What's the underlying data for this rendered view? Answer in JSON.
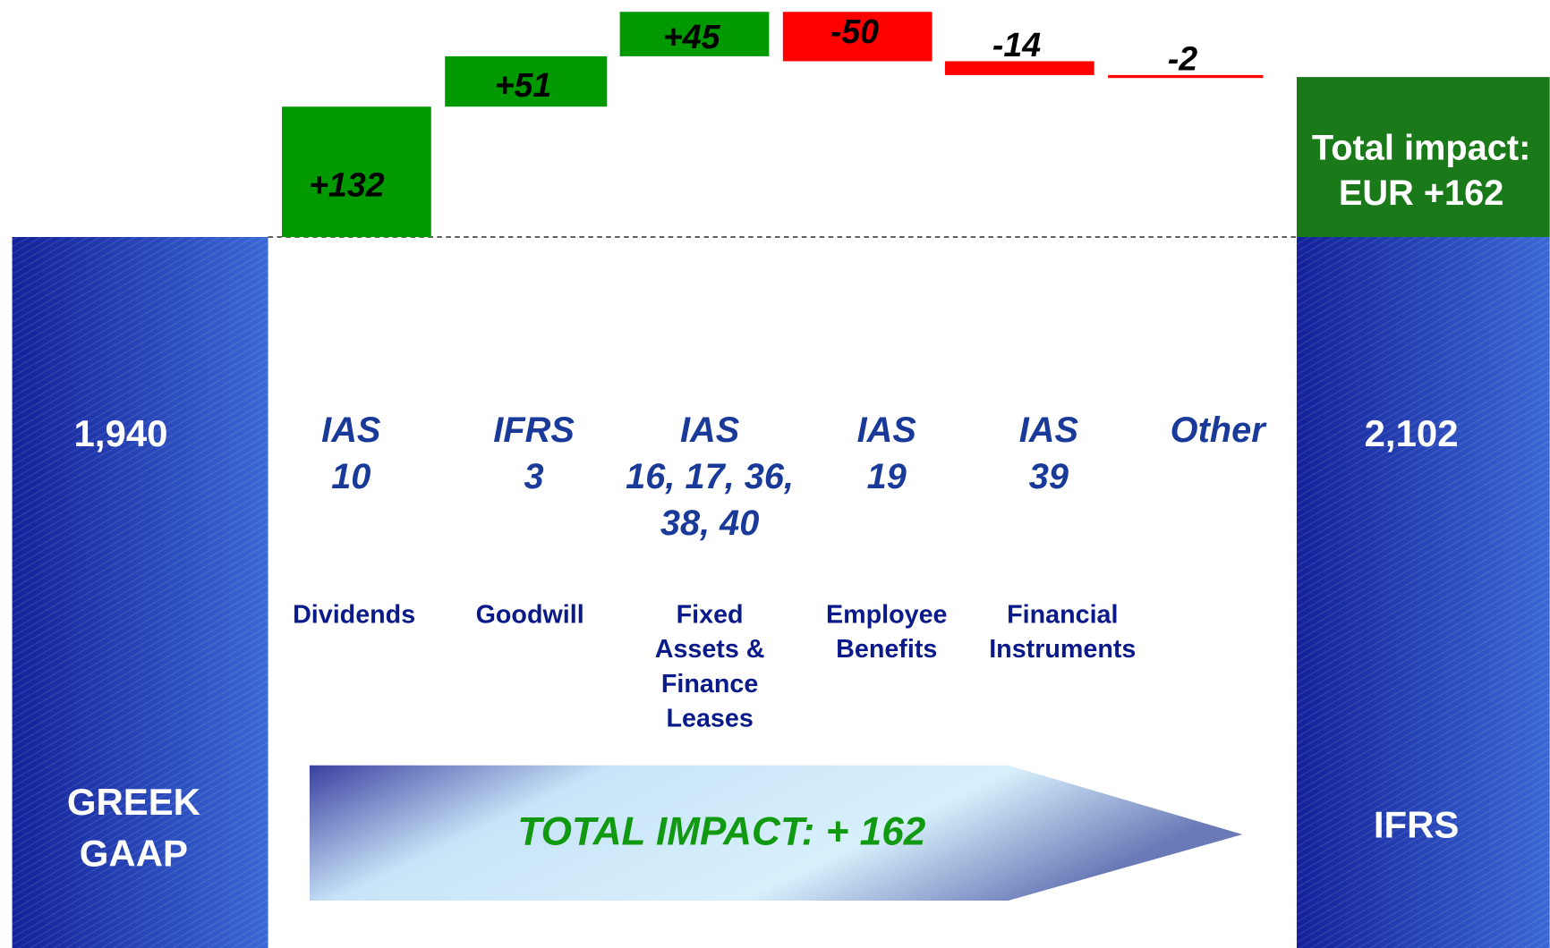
{
  "chart_data": {
    "type": "waterfall",
    "start": {
      "label": [
        "GREEK",
        "GAAP"
      ],
      "value": 1940,
      "value_label": "1,940"
    },
    "end": {
      "label": [
        "IFRS"
      ],
      "value": 2102,
      "value_label": "2,102"
    },
    "categories": [
      [
        "IAS",
        "10"
      ],
      [
        "IFRS",
        "3"
      ],
      [
        "IAS",
        "16, 17, 36,",
        "38, 40"
      ],
      [
        "IAS",
        "19"
      ],
      [
        "IAS",
        "39"
      ],
      [
        "Other"
      ]
    ],
    "descriptions": [
      [
        "Dividends"
      ],
      [
        "Goodwill"
      ],
      [
        "Fixed",
        "Assets &",
        "Finance",
        "Leases"
      ],
      [
        "Employee",
        "Benefits"
      ],
      [
        "Financial",
        "Instruments"
      ],
      null
    ],
    "values": [
      132,
      51,
      45,
      -50,
      -14,
      -2
    ],
    "value_labels": [
      "+132",
      "+51",
      "+45",
      "-50",
      "-14",
      "-2"
    ],
    "increase_color": "#009900",
    "decrease_color": "#ff0000",
    "total_color": "#1a7a1a",
    "total_box": [
      "Total impact:",
      "EUR +162"
    ],
    "arrow_text": "TOTAL IMPACT: + 162"
  }
}
